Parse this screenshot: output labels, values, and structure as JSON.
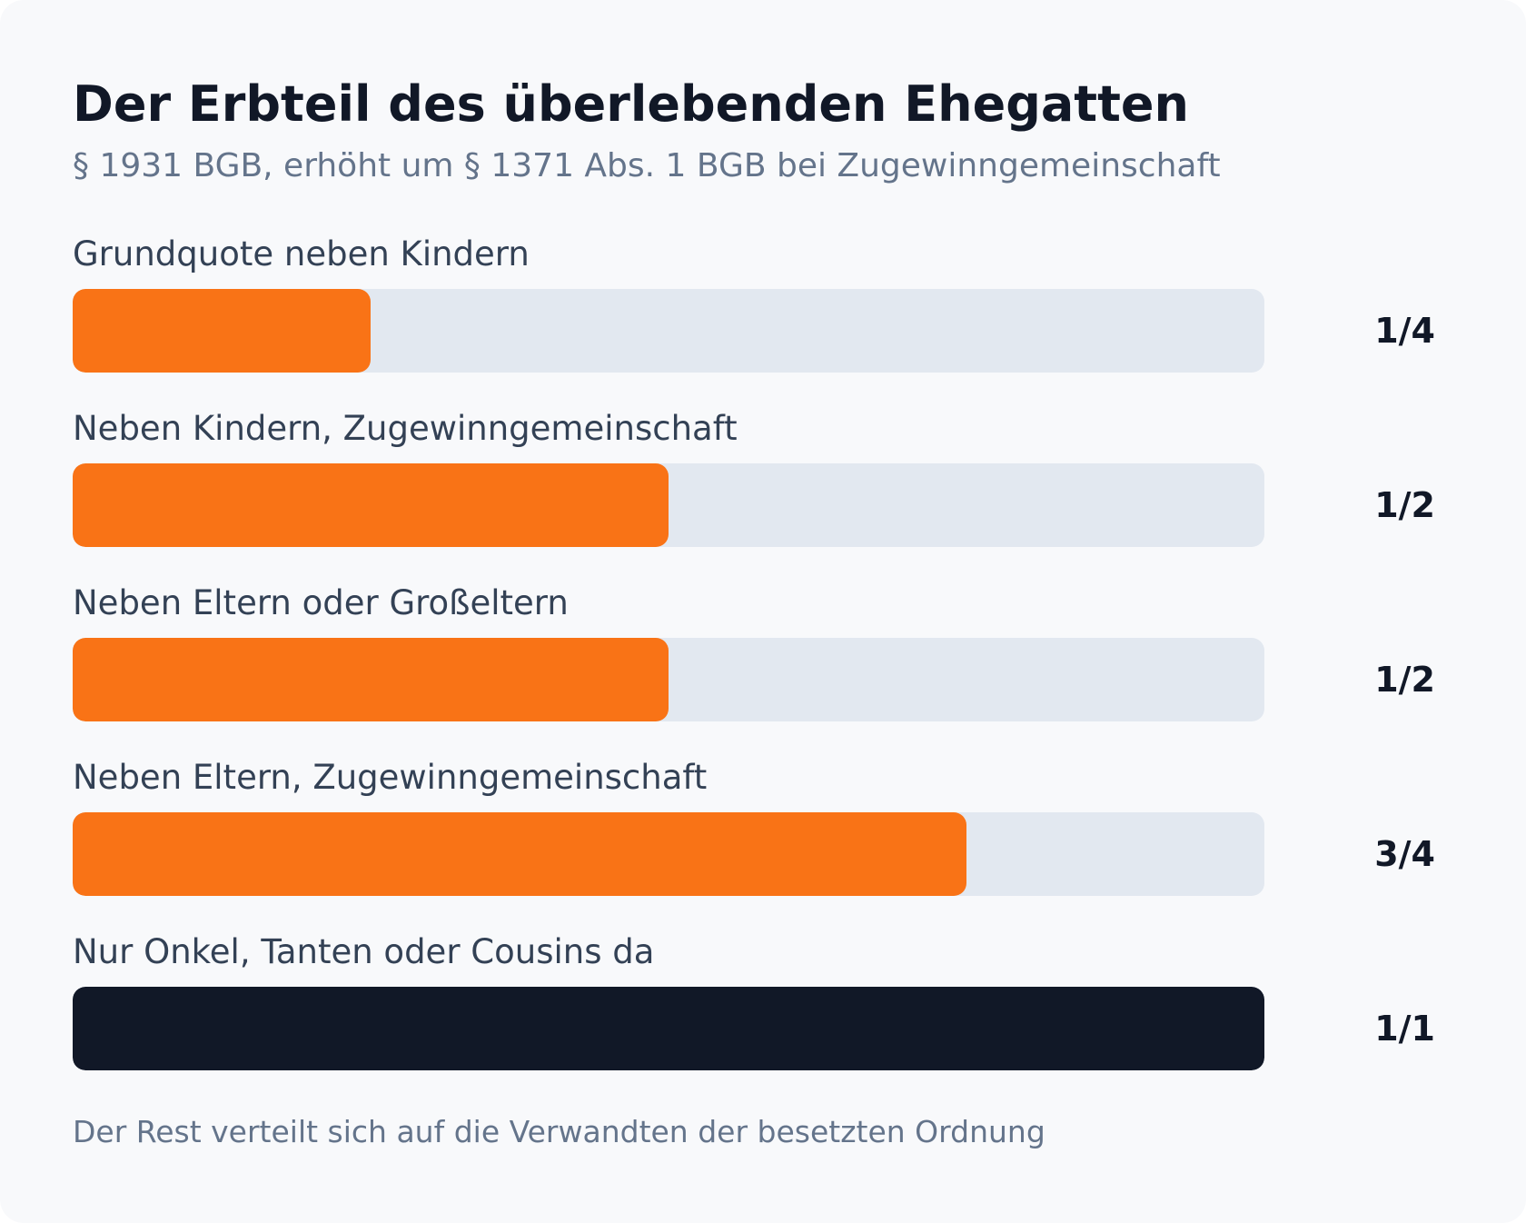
{
  "title": "Der Erbteil des überlebenden Ehegatten",
  "subtitle": "§ 1931 BGB, erhöht um § 1371 Abs. 1 BGB bei Zugewinngemeinschaft",
  "footnote": "Der Rest verteilt sich auf die Verwandten der besetzten Ordnung",
  "colors": {
    "accent": "#f97316",
    "dark": "#111827",
    "track": "#e2e8f0"
  },
  "chart_data": {
    "type": "bar",
    "orientation": "horizontal",
    "title": "Der Erbteil des überlebenden Ehegatten",
    "subtitle": "§ 1931 BGB, erhöht um § 1371 Abs. 1 BGB bei Zugewinngemeinschaft",
    "categories": [
      "Grundquote neben Kindern",
      "Neben Kindern, Zugewinngemeinschaft",
      "Neben Eltern oder Großeltern",
      "Neben Eltern, Zugewinngemeinschaft",
      "Nur Onkel, Tanten oder Cousins da"
    ],
    "values": [
      0.25,
      0.5,
      0.5,
      0.75,
      1.0
    ],
    "value_labels": [
      "1/4",
      "1/2",
      "1/2",
      "3/4",
      "1/1"
    ],
    "bar_colors": [
      "#f97316",
      "#f97316",
      "#f97316",
      "#f97316",
      "#111827"
    ],
    "xlim": [
      0,
      1
    ],
    "grid": false,
    "legend": "none"
  }
}
